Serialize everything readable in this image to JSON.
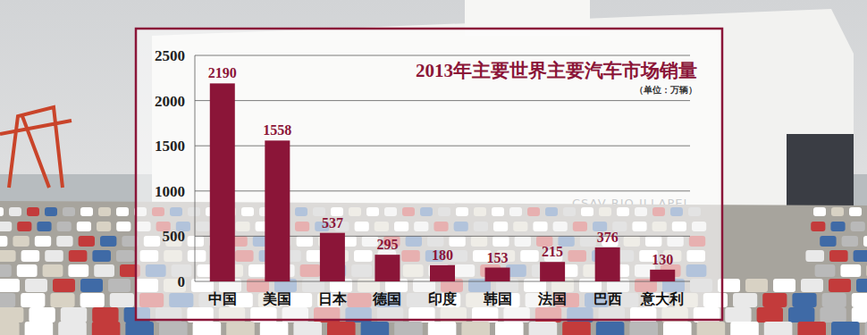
{
  "chart_data": {
    "type": "bar",
    "title": "2013年主要世界主要汽车市场销量",
    "subtitle": "（单位：万辆）",
    "categories": [
      "中国",
      "美国",
      "日本",
      "德国",
      "印度",
      "韩国",
      "法国",
      "巴西",
      "意大利"
    ],
    "values": [
      2190,
      1558,
      537,
      295,
      180,
      153,
      215,
      376,
      130
    ],
    "color": "#8b1538",
    "ylim": [
      0,
      2500
    ],
    "yticks": [
      0,
      500,
      1000,
      1500,
      2000,
      2500
    ],
    "grid": true,
    "data_labels": true,
    "annotations": [
      "CSAV RIO ILLAPEL"
    ]
  }
}
